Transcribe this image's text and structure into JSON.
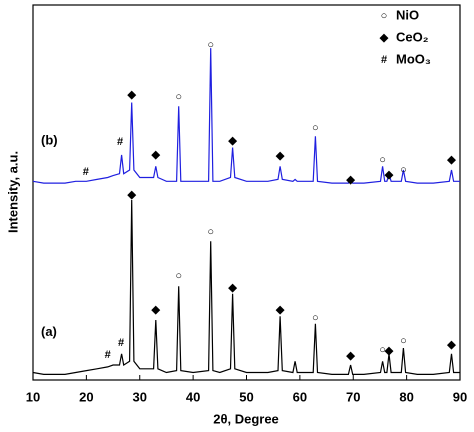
{
  "chart_data": {
    "type": "line",
    "xlabel": "2θ, Degree",
    "ylabel": "Intensity, a.u.",
    "xlim": [
      10,
      90
    ],
    "xticks": [
      10,
      20,
      30,
      40,
      50,
      60,
      70,
      80,
      90
    ],
    "ylim": [
      0,
      100
    ],
    "x": [
      10,
      12,
      14,
      16,
      18,
      20,
      22,
      24,
      25,
      26.2,
      26.6,
      27,
      28.1,
      28.5,
      28.9,
      30,
      32.6,
      33,
      33.4,
      35,
      36.9,
      37.3,
      37.7,
      40,
      42.9,
      43.3,
      43.7,
      45,
      47,
      47.4,
      47.8,
      50,
      52,
      54,
      55.9,
      56.3,
      56.7,
      58.7,
      59.1,
      59.5,
      61,
      62.5,
      62.9,
      63.3,
      66,
      69.1,
      69.5,
      69.9,
      72,
      75.1,
      75.5,
      75.9,
      76.3,
      76.7,
      77.1,
      79,
      79.4,
      79.8,
      82,
      85,
      88,
      88.4,
      88.8,
      90
    ],
    "series": [
      {
        "name": "(a)",
        "color": "#000000",
        "values": [
          2,
          1.5,
          1.5,
          1.5,
          2,
          2.5,
          3,
          3.5,
          4,
          4,
          7,
          4,
          5,
          48,
          5,
          3,
          3,
          16,
          3,
          2,
          2.5,
          25,
          2.5,
          2,
          2.5,
          37,
          2.5,
          2,
          3,
          23,
          3,
          2,
          2,
          2,
          2.5,
          17,
          2.5,
          2,
          5,
          2,
          2,
          2,
          15,
          2,
          1.5,
          1.5,
          4,
          1.5,
          1.5,
          2,
          5,
          2,
          2,
          7,
          2,
          2,
          8.5,
          2,
          1.5,
          1.5,
          2,
          7,
          2,
          2
        ]
      },
      {
        "name": "(b)",
        "color": "#1f1fe0",
        "values": [
          53,
          52.5,
          52.5,
          52.5,
          53,
          53,
          53.5,
          54,
          54.5,
          55,
          60,
          55,
          56,
          74,
          56,
          54,
          54,
          57,
          54,
          53,
          53,
          73,
          53,
          53,
          53,
          88.5,
          53,
          53,
          54,
          62,
          54,
          53,
          53,
          53,
          53.5,
          57,
          53.5,
          53,
          53.5,
          53,
          53,
          53,
          65,
          53,
          52.5,
          52.5,
          54,
          52.5,
          52.5,
          53,
          57,
          53,
          53,
          55,
          53,
          53,
          56,
          53,
          52.5,
          52.5,
          53,
          56,
          53,
          53
        ]
      }
    ],
    "annotations": [
      {
        "text": "#",
        "x": 19.9,
        "y": 55.5
      },
      {
        "text": "#",
        "x": 26.3,
        "y": 63.5
      },
      {
        "text": "◆",
        "x": 28.5,
        "y": 76
      },
      {
        "text": "◆",
        "x": 33,
        "y": 60
      },
      {
        "text": "○",
        "x": 37.3,
        "y": 75.5
      },
      {
        "text": "○",
        "x": 43.3,
        "y": 89.3
      },
      {
        "text": "◆",
        "x": 47.4,
        "y": 63.7
      },
      {
        "text": "◆",
        "x": 56.3,
        "y": 59.7
      },
      {
        "text": "○",
        "x": 62.9,
        "y": 67.2
      },
      {
        "text": "◆",
        "x": 69.5,
        "y": 53.3
      },
      {
        "text": "○",
        "x": 75.5,
        "y": 58.7
      },
      {
        "text": "◆",
        "x": 76.7,
        "y": 54.7
      },
      {
        "text": "○",
        "x": 79.4,
        "y": 56
      },
      {
        "text": "◆",
        "x": 88.4,
        "y": 58.7
      },
      {
        "text": "#",
        "x": 24.0,
        "y": 6.7
      },
      {
        "text": "#",
        "x": 26.5,
        "y": 9.9
      },
      {
        "text": "◆",
        "x": 28.5,
        "y": 49.3
      },
      {
        "text": "◆",
        "x": 33,
        "y": 18.7
      },
      {
        "text": "○",
        "x": 37.3,
        "y": 27.7
      },
      {
        "text": "○",
        "x": 43.3,
        "y": 39.5
      },
      {
        "text": "◆",
        "x": 47.4,
        "y": 24.5
      },
      {
        "text": "◆",
        "x": 56.3,
        "y": 18.7
      },
      {
        "text": "○",
        "x": 62.9,
        "y": 16.5
      },
      {
        "text": "◆",
        "x": 69.5,
        "y": 6.4
      },
      {
        "text": "○",
        "x": 75.5,
        "y": 8
      },
      {
        "text": "◆",
        "x": 76.7,
        "y": 7.7
      },
      {
        "text": "○",
        "x": 79.4,
        "y": 10.4
      },
      {
        "text": "◆",
        "x": 88.4,
        "y": 9.3
      }
    ],
    "legend": [
      {
        "symbol": "○",
        "name": "NiO"
      },
      {
        "symbol": "◆",
        "name": "CeO₂"
      },
      {
        "symbol": "#",
        "name": "MoO₃"
      }
    ]
  }
}
